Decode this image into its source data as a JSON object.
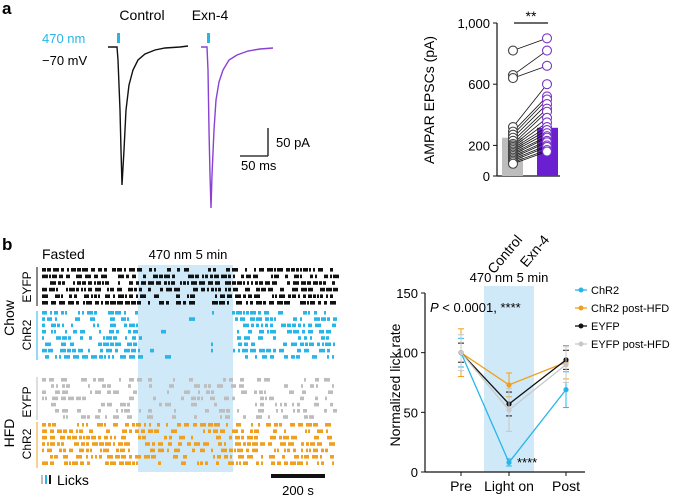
{
  "panel_a": {
    "label": "a",
    "cond_control": "Control",
    "cond_exn4": "Exn-4",
    "stim_label": "470 nm",
    "hold_label": "−70 mV",
    "scale_y": "50 pA",
    "scale_x": "50 ms"
  },
  "panel_b": {
    "label": "b",
    "state": "Fasted",
    "stim": "470 nm 5 min",
    "diet_chow": "Chow",
    "diet_hfd": "HFD",
    "grp_eyfp": "EYFP",
    "grp_chr2": "ChR2",
    "licks_legend": "Licks",
    "time_scale": "200 s"
  },
  "colors": {
    "control": "#111111",
    "exn4": "#8a3fd6",
    "exn4_fill": "#6a1fd0",
    "cyan": "#29b5e8",
    "orange": "#f0a020",
    "gray": "#bdbdbd",
    "light_band": "#cfe9f8"
  },
  "chart_data": [
    {
      "type": "bar",
      "ylabel": "AMPAR EPSCs (pA)",
      "categories": [
        "Control",
        "Exn-4"
      ],
      "values": [
        250,
        315
      ],
      "ylim": [
        0,
        1000
      ],
      "yticks": [
        0,
        200,
        600,
        "1,000"
      ],
      "significance": "**",
      "paired_points": [
        [
          820,
          900
        ],
        [
          660,
          820
        ],
        [
          640,
          720
        ],
        [
          320,
          600
        ],
        [
          290,
          520
        ],
        [
          270,
          500
        ],
        [
          250,
          470
        ],
        [
          230,
          440
        ],
        [
          210,
          420
        ],
        [
          200,
          380
        ],
        [
          190,
          350
        ],
        [
          180,
          320
        ],
        [
          170,
          300
        ],
        [
          160,
          280
        ],
        [
          150,
          260
        ],
        [
          140,
          250
        ],
        [
          130,
          230
        ],
        [
          120,
          220
        ],
        [
          110,
          200
        ],
        [
          100,
          190
        ],
        [
          90,
          170
        ],
        [
          80,
          160
        ]
      ]
    },
    {
      "type": "line",
      "ylabel": "Normalized lick rate",
      "categories": [
        "Pre",
        "Light on",
        "Post"
      ],
      "ylim": [
        0,
        150
      ],
      "yticks": [
        0,
        50,
        100,
        150
      ],
      "shaded_label": "470 nm 5 min",
      "annotation": "P < 0.0001, ****",
      "annotation_p": "P",
      "annotation_rest": " < 0.0001, ****",
      "point_annotation": "****",
      "series": [
        {
          "name": "ChR2",
          "values": [
            100,
            8,
            69
          ],
          "errors": [
            12,
            3,
            15
          ],
          "color": "#29b5e8"
        },
        {
          "name": "ChR2 post-HFD",
          "values": [
            100,
            73,
            92
          ],
          "errors": [
            20,
            10,
            14
          ],
          "color": "#f0a020"
        },
        {
          "name": "EYFP",
          "values": [
            100,
            57,
            94
          ],
          "errors": [
            8,
            10,
            8
          ],
          "color": "#111111"
        },
        {
          "name": "EYFP post-HFD",
          "values": [
            100,
            52,
            90
          ],
          "errors": [
            15,
            18,
            15
          ],
          "color": "#c8c8c8"
        }
      ]
    }
  ]
}
